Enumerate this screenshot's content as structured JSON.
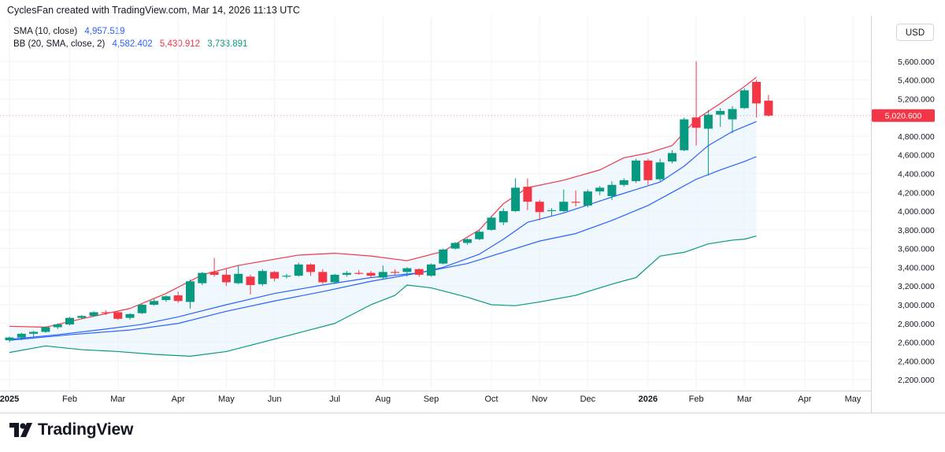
{
  "header": {
    "text": "CyclesFan created with TradingView.com, Mar 14, 2026 11:13 UTC"
  },
  "legend": {
    "sma_label": "SMA (10, close)",
    "sma_value": "4,957.519",
    "bb_label": "BB (20, SMA, close, 2)",
    "bb_basis": "4,582.402",
    "bb_upper": "5,430.912",
    "bb_lower": "3,733.891"
  },
  "currency_button": "USD",
  "brand": {
    "name": "TradingView"
  },
  "colors": {
    "up": "#089981",
    "down": "#f23645",
    "sma": "#2962ff",
    "bb_upper": "#f23645",
    "bb_lower": "#089981",
    "bb_basis": "#2962ff",
    "fill": "#e3f2fd"
  },
  "chart_data": {
    "type": "candlestick",
    "ylim": [
      2100,
      5750
    ],
    "price_label": "5,020.600",
    "y_ticks": [
      "2,200.000",
      "2,400.000",
      "2,600.000",
      "2,800.000",
      "3,000.000",
      "3,200.000",
      "3,400.000",
      "3,600.000",
      "3,800.000",
      "4,000.000",
      "4,200.000",
      "4,400.000",
      "4,600.000",
      "4,800.000",
      "5,200.000",
      "5,400.000",
      "5,600.000"
    ],
    "x_ticks": [
      {
        "label": "2025",
        "i": 0,
        "bold": true
      },
      {
        "label": "Feb",
        "i": 5
      },
      {
        "label": "Mar",
        "i": 9
      },
      {
        "label": "Apr",
        "i": 14
      },
      {
        "label": "May",
        "i": 18
      },
      {
        "label": "Jun",
        "i": 22
      },
      {
        "label": "Jul",
        "i": 27
      },
      {
        "label": "Aug",
        "i": 31
      },
      {
        "label": "Sep",
        "i": 35
      },
      {
        "label": "Oct",
        "i": 40
      },
      {
        "label": "Nov",
        "i": 44
      },
      {
        "label": "Dec",
        "i": 48
      },
      {
        "label": "2026",
        "i": 53,
        "bold": true
      },
      {
        "label": "Feb",
        "i": 57
      },
      {
        "label": "Mar",
        "i": 61
      },
      {
        "label": "Apr",
        "i": 66
      },
      {
        "label": "May",
        "i": 70
      }
    ],
    "candles": [
      {
        "o": 2620,
        "h": 2660,
        "l": 2600,
        "c": 2650
      },
      {
        "o": 2650,
        "h": 2700,
        "l": 2620,
        "c": 2690
      },
      {
        "o": 2690,
        "h": 2720,
        "l": 2660,
        "c": 2710
      },
      {
        "o": 2710,
        "h": 2770,
        "l": 2700,
        "c": 2760
      },
      {
        "o": 2760,
        "h": 2800,
        "l": 2740,
        "c": 2790
      },
      {
        "o": 2790,
        "h": 2870,
        "l": 2780,
        "c": 2860
      },
      {
        "o": 2860,
        "h": 2890,
        "l": 2850,
        "c": 2880
      },
      {
        "o": 2880,
        "h": 2930,
        "l": 2870,
        "c": 2920
      },
      {
        "o": 2920,
        "h": 2940,
        "l": 2890,
        "c": 2910
      },
      {
        "o": 2920,
        "h": 2930,
        "l": 2840,
        "c": 2850
      },
      {
        "o": 2860,
        "h": 2910,
        "l": 2840,
        "c": 2900
      },
      {
        "o": 2910,
        "h": 3010,
        "l": 2900,
        "c": 3000
      },
      {
        "o": 3000,
        "h": 3060,
        "l": 2990,
        "c": 3040
      },
      {
        "o": 3050,
        "h": 3100,
        "l": 3030,
        "c": 3090
      },
      {
        "o": 3100,
        "h": 3140,
        "l": 3020,
        "c": 3040
      },
      {
        "o": 3030,
        "h": 3270,
        "l": 2960,
        "c": 3250
      },
      {
        "o": 3230,
        "h": 3350,
        "l": 3210,
        "c": 3340
      },
      {
        "o": 3350,
        "h": 3500,
        "l": 3300,
        "c": 3320
      },
      {
        "o": 3320,
        "h": 3380,
        "l": 3200,
        "c": 3240
      },
      {
        "o": 3230,
        "h": 3420,
        "l": 3220,
        "c": 3330
      },
      {
        "o": 3300,
        "h": 3320,
        "l": 3110,
        "c": 3210
      },
      {
        "o": 3220,
        "h": 3380,
        "l": 3200,
        "c": 3360
      },
      {
        "o": 3350,
        "h": 3360,
        "l": 3250,
        "c": 3280
      },
      {
        "o": 3300,
        "h": 3330,
        "l": 3280,
        "c": 3310
      },
      {
        "o": 3310,
        "h": 3450,
        "l": 3300,
        "c": 3430
      },
      {
        "o": 3430,
        "h": 3440,
        "l": 3310,
        "c": 3350
      },
      {
        "o": 3350,
        "h": 3380,
        "l": 3220,
        "c": 3240
      },
      {
        "o": 3240,
        "h": 3330,
        "l": 3220,
        "c": 3320
      },
      {
        "o": 3320,
        "h": 3360,
        "l": 3300,
        "c": 3340
      },
      {
        "o": 3340,
        "h": 3370,
        "l": 3320,
        "c": 3330
      },
      {
        "o": 3340,
        "h": 3360,
        "l": 3290,
        "c": 3310
      },
      {
        "o": 3290,
        "h": 3420,
        "l": 3270,
        "c": 3350
      },
      {
        "o": 3350,
        "h": 3380,
        "l": 3320,
        "c": 3340
      },
      {
        "o": 3350,
        "h": 3400,
        "l": 3300,
        "c": 3390
      },
      {
        "o": 3380,
        "h": 3390,
        "l": 3300,
        "c": 3320
      },
      {
        "o": 3310,
        "h": 3440,
        "l": 3300,
        "c": 3430
      },
      {
        "o": 3440,
        "h": 3600,
        "l": 3430,
        "c": 3590
      },
      {
        "o": 3600,
        "h": 3670,
        "l": 3590,
        "c": 3660
      },
      {
        "o": 3660,
        "h": 3710,
        "l": 3640,
        "c": 3700
      },
      {
        "o": 3700,
        "h": 3800,
        "l": 3690,
        "c": 3780
      },
      {
        "o": 3800,
        "h": 3950,
        "l": 3790,
        "c": 3930
      },
      {
        "o": 3880,
        "h": 4030,
        "l": 3850,
        "c": 4000
      },
      {
        "o": 4000,
        "h": 4350,
        "l": 3990,
        "c": 4250
      },
      {
        "o": 4260,
        "h": 4350,
        "l": 4010,
        "c": 4100
      },
      {
        "o": 4100,
        "h": 4120,
        "l": 3900,
        "c": 3990
      },
      {
        "o": 4000,
        "h": 4030,
        "l": 3950,
        "c": 4010
      },
      {
        "o": 4000,
        "h": 4230,
        "l": 3990,
        "c": 4100
      },
      {
        "o": 4100,
        "h": 4220,
        "l": 4050,
        "c": 4090
      },
      {
        "o": 4060,
        "h": 4230,
        "l": 4040,
        "c": 4210
      },
      {
        "o": 4210,
        "h": 4270,
        "l": 4170,
        "c": 4250
      },
      {
        "o": 4160,
        "h": 4320,
        "l": 4120,
        "c": 4280
      },
      {
        "o": 4280,
        "h": 4350,
        "l": 4260,
        "c": 4330
      },
      {
        "o": 4320,
        "h": 4560,
        "l": 4300,
        "c": 4540
      },
      {
        "o": 4540,
        "h": 4560,
        "l": 4280,
        "c": 4330
      },
      {
        "o": 4340,
        "h": 4560,
        "l": 4320,
        "c": 4520
      },
      {
        "o": 4530,
        "h": 4650,
        "l": 4510,
        "c": 4620
      },
      {
        "o": 4650,
        "h": 5000,
        "l": 4640,
        "c": 4980
      },
      {
        "o": 5000,
        "h": 5600,
        "l": 4700,
        "c": 4890
      },
      {
        "o": 4880,
        "h": 5080,
        "l": 4380,
        "c": 5030
      },
      {
        "o": 5030,
        "h": 5100,
        "l": 4900,
        "c": 5070
      },
      {
        "o": 4980,
        "h": 5120,
        "l": 4830,
        "c": 5090
      },
      {
        "o": 5100,
        "h": 5310,
        "l": 5090,
        "c": 5290
      },
      {
        "o": 5380,
        "h": 5400,
        "l": 5000,
        "c": 5150
      },
      {
        "o": 5180,
        "h": 5240,
        "l": 5010,
        "c": 5020
      }
    ],
    "sma": [
      {
        "i": 0,
        "v": 2630
      },
      {
        "i": 4,
        "v": 2680
      },
      {
        "i": 8,
        "v": 2740
      },
      {
        "i": 11,
        "v": 2790
      },
      {
        "i": 14,
        "v": 2870
      },
      {
        "i": 18,
        "v": 3000
      },
      {
        "i": 22,
        "v": 3120
      },
      {
        "i": 26,
        "v": 3210
      },
      {
        "i": 30,
        "v": 3290
      },
      {
        "i": 34,
        "v": 3340
      },
      {
        "i": 36,
        "v": 3400
      },
      {
        "i": 39,
        "v": 3540
      },
      {
        "i": 41,
        "v": 3700
      },
      {
        "i": 43,
        "v": 3880
      },
      {
        "i": 46,
        "v": 3980
      },
      {
        "i": 50,
        "v": 4150
      },
      {
        "i": 52,
        "v": 4230
      },
      {
        "i": 54,
        "v": 4310
      },
      {
        "i": 56,
        "v": 4480
      },
      {
        "i": 58,
        "v": 4700
      },
      {
        "i": 60,
        "v": 4850
      },
      {
        "i": 62,
        "v": 4957
      }
    ],
    "bb_upper": [
      {
        "i": 0,
        "v": 2770
      },
      {
        "i": 3,
        "v": 2760
      },
      {
        "i": 6,
        "v": 2850
      },
      {
        "i": 10,
        "v": 2960
      },
      {
        "i": 13,
        "v": 3120
      },
      {
        "i": 16,
        "v": 3320
      },
      {
        "i": 19,
        "v": 3420
      },
      {
        "i": 24,
        "v": 3530
      },
      {
        "i": 27,
        "v": 3550
      },
      {
        "i": 30,
        "v": 3520
      },
      {
        "i": 33,
        "v": 3470
      },
      {
        "i": 36,
        "v": 3570
      },
      {
        "i": 39,
        "v": 3800
      },
      {
        "i": 41,
        "v": 4080
      },
      {
        "i": 43,
        "v": 4250
      },
      {
        "i": 46,
        "v": 4330
      },
      {
        "i": 49,
        "v": 4440
      },
      {
        "i": 51,
        "v": 4570
      },
      {
        "i": 53,
        "v": 4620
      },
      {
        "i": 55,
        "v": 4700
      },
      {
        "i": 57,
        "v": 4980
      },
      {
        "i": 59,
        "v": 5150
      },
      {
        "i": 61,
        "v": 5330
      },
      {
        "i": 62,
        "v": 5431
      }
    ],
    "bb_basis": [
      {
        "i": 0,
        "v": 2620
      },
      {
        "i": 5,
        "v": 2680
      },
      {
        "i": 10,
        "v": 2730
      },
      {
        "i": 14,
        "v": 2800
      },
      {
        "i": 18,
        "v": 2930
      },
      {
        "i": 22,
        "v": 3040
      },
      {
        "i": 26,
        "v": 3140
      },
      {
        "i": 30,
        "v": 3250
      },
      {
        "i": 34,
        "v": 3340
      },
      {
        "i": 38,
        "v": 3440
      },
      {
        "i": 41,
        "v": 3560
      },
      {
        "i": 44,
        "v": 3680
      },
      {
        "i": 47,
        "v": 3760
      },
      {
        "i": 50,
        "v": 3900
      },
      {
        "i": 53,
        "v": 4060
      },
      {
        "i": 55,
        "v": 4200
      },
      {
        "i": 57,
        "v": 4340
      },
      {
        "i": 59,
        "v": 4440
      },
      {
        "i": 61,
        "v": 4530
      },
      {
        "i": 62,
        "v": 4582
      }
    ],
    "bb_lower": [
      {
        "i": 0,
        "v": 2490
      },
      {
        "i": 3,
        "v": 2560
      },
      {
        "i": 6,
        "v": 2520
      },
      {
        "i": 9,
        "v": 2500
      },
      {
        "i": 12,
        "v": 2470
      },
      {
        "i": 15,
        "v": 2450
      },
      {
        "i": 18,
        "v": 2500
      },
      {
        "i": 21,
        "v": 2600
      },
      {
        "i": 24,
        "v": 2700
      },
      {
        "i": 27,
        "v": 2800
      },
      {
        "i": 30,
        "v": 3000
      },
      {
        "i": 32,
        "v": 3100
      },
      {
        "i": 33,
        "v": 3210
      },
      {
        "i": 35,
        "v": 3180
      },
      {
        "i": 38,
        "v": 3080
      },
      {
        "i": 40,
        "v": 3000
      },
      {
        "i": 42,
        "v": 2990
      },
      {
        "i": 44,
        "v": 3030
      },
      {
        "i": 47,
        "v": 3100
      },
      {
        "i": 50,
        "v": 3220
      },
      {
        "i": 52,
        "v": 3290
      },
      {
        "i": 54,
        "v": 3520
      },
      {
        "i": 56,
        "v": 3560
      },
      {
        "i": 58,
        "v": 3650
      },
      {
        "i": 60,
        "v": 3690
      },
      {
        "i": 61,
        "v": 3700
      },
      {
        "i": 62,
        "v": 3734
      }
    ]
  }
}
